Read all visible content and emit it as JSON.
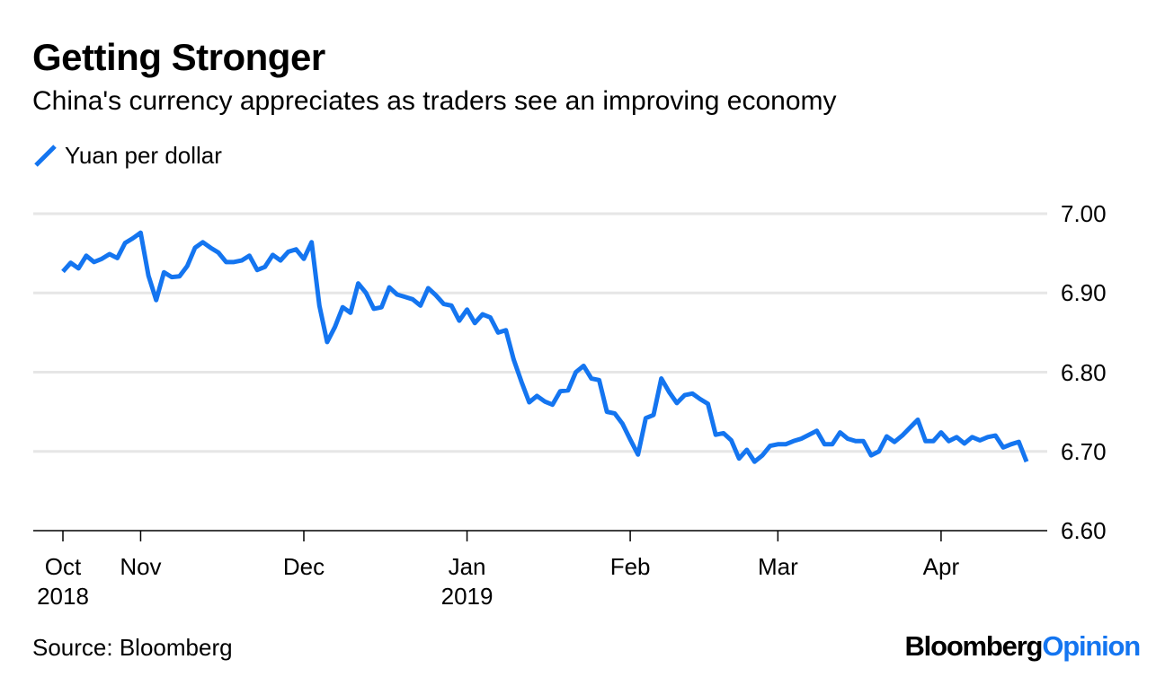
{
  "chart_data": {
    "type": "line",
    "title": "Getting Stronger",
    "subtitle": "China's currency appreciates as traders see an improving economy",
    "source": "Source: Bloomberg",
    "brand": {
      "name": "Bloomberg",
      "suffix": "Opinion"
    },
    "grid": true,
    "categories": [
      "Oct\n2018",
      null,
      null,
      null,
      null,
      null,
      null,
      null,
      null,
      null,
      "Nov",
      null,
      null,
      null,
      null,
      null,
      null,
      null,
      null,
      null,
      null,
      null,
      null,
      null,
      null,
      null,
      null,
      null,
      null,
      null,
      null,
      "Dec",
      null,
      null,
      null,
      null,
      null,
      null,
      null,
      null,
      null,
      null,
      null,
      null,
      null,
      null,
      null,
      null,
      null,
      null,
      null,
      null,
      "Jan\n2019",
      null,
      null,
      null,
      null,
      null,
      null,
      null,
      null,
      null,
      null,
      null,
      null,
      null,
      null,
      null,
      null,
      null,
      null,
      null,
      null,
      "Feb",
      null,
      null,
      null,
      null,
      null,
      null,
      null,
      null,
      null,
      null,
      null,
      null,
      null,
      null,
      null,
      null,
      null,
      null,
      "Mar",
      null,
      null,
      null,
      null,
      null,
      null,
      null,
      null,
      null,
      null,
      null,
      null,
      null,
      null,
      null,
      null,
      null,
      null,
      null,
      null,
      "Apr",
      null,
      null,
      null,
      null,
      null,
      null,
      null,
      null,
      null,
      null,
      null
    ],
    "series": [
      {
        "name": "Yuan per dollar",
        "color": "#1475f0",
        "values": [
          6.927,
          6.938,
          6.931,
          6.947,
          6.939,
          6.943,
          6.949,
          6.944,
          6.963,
          6.969,
          6.976,
          6.922,
          6.891,
          6.926,
          6.92,
          6.921,
          6.934,
          6.957,
          6.964,
          6.957,
          6.951,
          6.939,
          6.939,
          6.941,
          6.947,
          6.929,
          6.933,
          6.948,
          6.941,
          6.952,
          6.955,
          6.943,
          6.964,
          6.884,
          6.838,
          6.857,
          6.882,
          6.875,
          6.912,
          6.9,
          6.88,
          6.882,
          6.907,
          6.898,
          6.895,
          6.892,
          6.884,
          6.906,
          6.897,
          6.886,
          6.884,
          6.865,
          6.879,
          6.862,
          6.873,
          6.869,
          6.85,
          6.853,
          6.816,
          6.788,
          6.762,
          6.77,
          6.763,
          6.759,
          6.776,
          6.777,
          6.8,
          6.808,
          6.792,
          6.79,
          6.75,
          6.748,
          6.735,
          6.715,
          6.696,
          6.742,
          6.746,
          6.792,
          6.775,
          6.761,
          6.771,
          6.773,
          6.766,
          6.76,
          6.721,
          6.723,
          6.714,
          6.691,
          6.702,
          6.687,
          6.695,
          6.707,
          6.709,
          6.709,
          6.713,
          6.716,
          6.721,
          6.726,
          6.709,
          6.709,
          6.724,
          6.716,
          6.713,
          6.713,
          6.695,
          6.7,
          6.719,
          6.712,
          6.72,
          6.73,
          6.74,
          6.713,
          6.713,
          6.724,
          6.713,
          6.718,
          6.71,
          6.718,
          6.714,
          6.718,
          6.72,
          6.705,
          6.709,
          6.712,
          6.687
        ]
      }
    ],
    "ylim": [
      6.6,
      7.0
    ],
    "yticks": [
      {
        "value": 6.6,
        "label": "6.60"
      },
      {
        "value": 6.7,
        "label": "6.70"
      },
      {
        "value": 6.8,
        "label": "6.80"
      },
      {
        "value": 6.9,
        "label": "6.90"
      },
      {
        "value": 7.0,
        "label": "7.00"
      }
    ]
  }
}
